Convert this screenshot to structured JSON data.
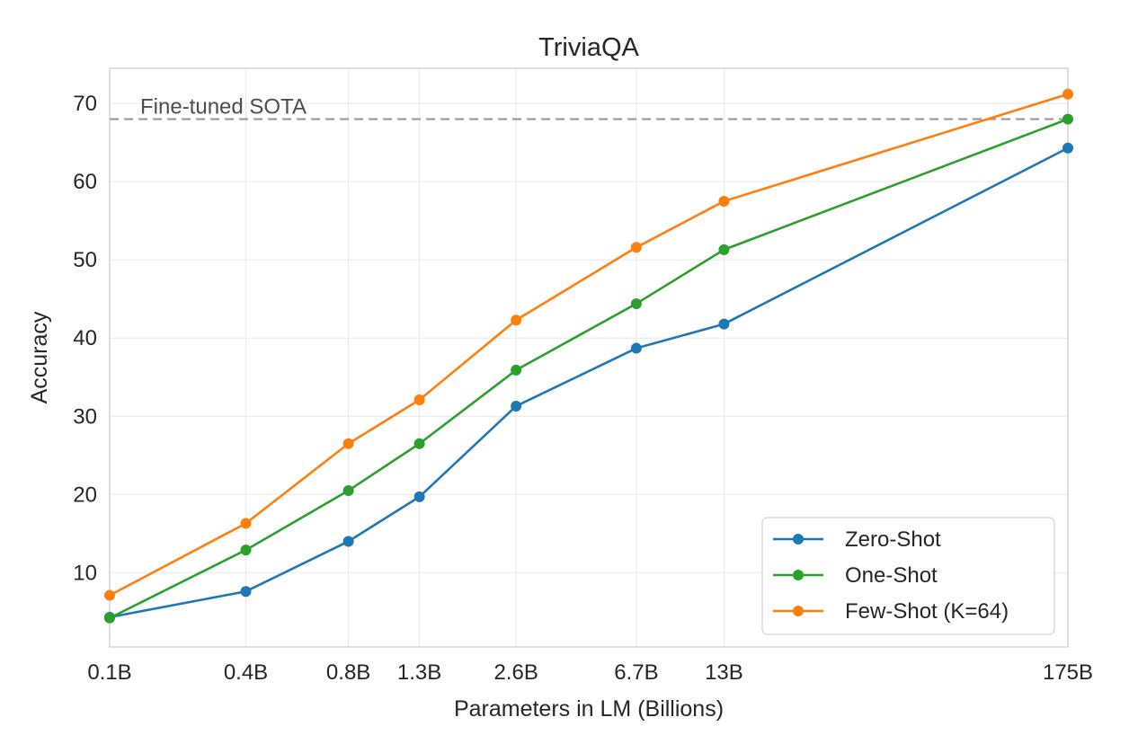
{
  "chart_data": {
    "type": "line",
    "title": "TriviaQA",
    "xlabel": "Parameters in LM (Billions)",
    "ylabel": "Accuracy",
    "x_scale": "log",
    "categories": [
      "0.1B",
      "0.4B",
      "0.8B",
      "1.3B",
      "2.6B",
      "6.7B",
      "13B",
      "175B"
    ],
    "x": [
      0.125,
      0.35,
      0.76,
      1.3,
      2.7,
      6.7,
      13,
      175
    ],
    "ylim": [
      0.5,
      74.5
    ],
    "yticks": [
      10,
      20,
      30,
      40,
      50,
      60,
      70
    ],
    "grid": true,
    "legend_position": "lower-right",
    "reference_line": {
      "label": "Fine-tuned SOTA",
      "value": 68.0,
      "color": "#999999"
    },
    "series": [
      {
        "name": "Zero-Shot",
        "color": "#1f77b4",
        "values": [
          4.3,
          7.6,
          14.0,
          19.7,
          31.3,
          38.7,
          41.8,
          64.3
        ]
      },
      {
        "name": "One-Shot",
        "color": "#2ca02c",
        "values": [
          4.2,
          12.9,
          20.5,
          26.5,
          35.9,
          44.4,
          51.3,
          68.0
        ]
      },
      {
        "name": "Few-Shot (K=64)",
        "color": "#ff7f0e",
        "values": [
          7.1,
          16.3,
          26.5,
          32.1,
          42.3,
          51.6,
          57.5,
          71.2
        ]
      }
    ]
  }
}
